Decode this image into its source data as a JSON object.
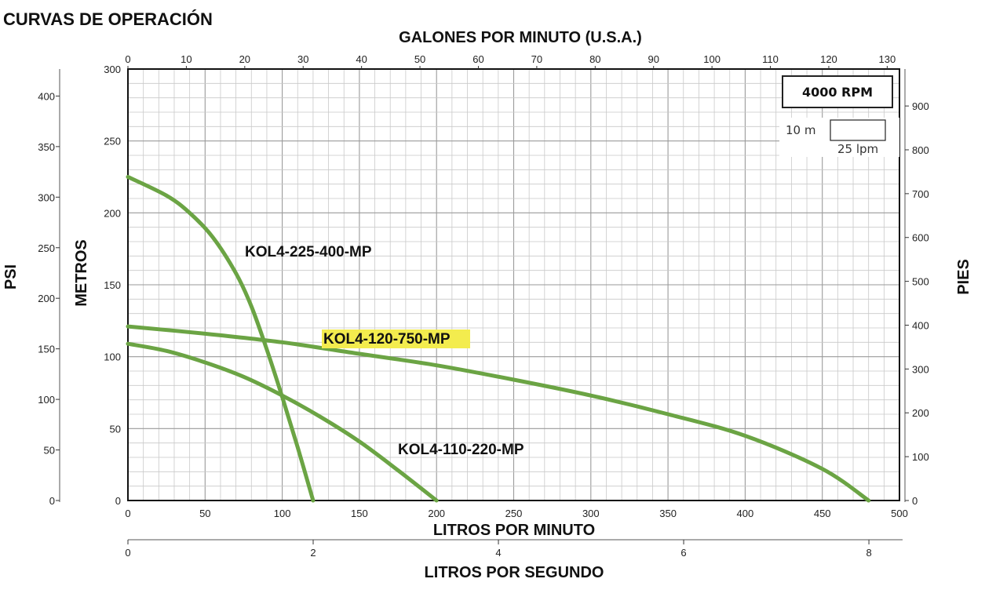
{
  "title": "CURVAS DE OPERACIÓN",
  "chart_data": {
    "type": "line",
    "x_axis_bottom": {
      "label": "LITROS POR MINUTO",
      "range": [
        0,
        500
      ],
      "ticks": [
        "0",
        "50",
        "100",
        "150",
        "200",
        "250",
        "300",
        "350",
        "400",
        "450",
        "500"
      ]
    },
    "x_axis_top": {
      "label": "GALONES POR MINUTO (U.S.A.)",
      "range": [
        0,
        132.1
      ],
      "ticks": [
        "0",
        "10",
        "20",
        "30",
        "40",
        "50",
        "60",
        "70",
        "80",
        "90",
        "100",
        "110",
        "120",
        "130"
      ]
    },
    "x_axis_lps": {
      "label": "LITROS POR SEGUNDO",
      "range": [
        0,
        8.33
      ],
      "ticks": [
        "0",
        "2",
        "4",
        "6",
        "8"
      ]
    },
    "y_axis_metros": {
      "label": "METROS",
      "range": [
        0,
        300
      ],
      "ticks": [
        "0",
        "50",
        "100",
        "150",
        "200",
        "250",
        "300"
      ]
    },
    "y_axis_psi": {
      "label": "PSI",
      "range": [
        0,
        426.7
      ],
      "ticks": [
        "0",
        "50",
        "100",
        "150",
        "200",
        "250",
        "300",
        "350",
        "400"
      ]
    },
    "y_axis_pies": {
      "label": "PIES",
      "range": [
        0,
        984.3
      ],
      "ticks": [
        "0",
        "100",
        "200",
        "300",
        "400",
        "500",
        "600",
        "700",
        "800",
        "900"
      ]
    },
    "grid": true,
    "rpm_box": "4000 RPM",
    "scale_note": {
      "vertical": "10 m",
      "horizontal": "25 lpm"
    },
    "series": [
      {
        "name": "KOL4-225-400-MP",
        "color": "#6ba444",
        "highlight": false,
        "x": [
          0,
          25,
          40,
          55,
          70,
          80,
          90,
          100,
          110,
          120
        ],
        "y": [
          225,
          212,
          200,
          183,
          158,
          135,
          105,
          72,
          37,
          0
        ]
      },
      {
        "name": "KOL4-120-750-MP",
        "color": "#6ba444",
        "highlight": true,
        "x": [
          0,
          50,
          100,
          150,
          200,
          250,
          300,
          350,
          400,
          450,
          480
        ],
        "y": [
          121,
          116,
          110,
          102,
          94,
          84,
          73,
          60,
          45,
          22,
          0
        ]
      },
      {
        "name": "KOL4-110-220-MP",
        "color": "#6ba444",
        "highlight": false,
        "x": [
          0,
          25,
          50,
          75,
          100,
          125,
          150,
          175,
          200
        ],
        "y": [
          109,
          104,
          96,
          86,
          73,
          58,
          41,
          21,
          0
        ]
      }
    ]
  }
}
